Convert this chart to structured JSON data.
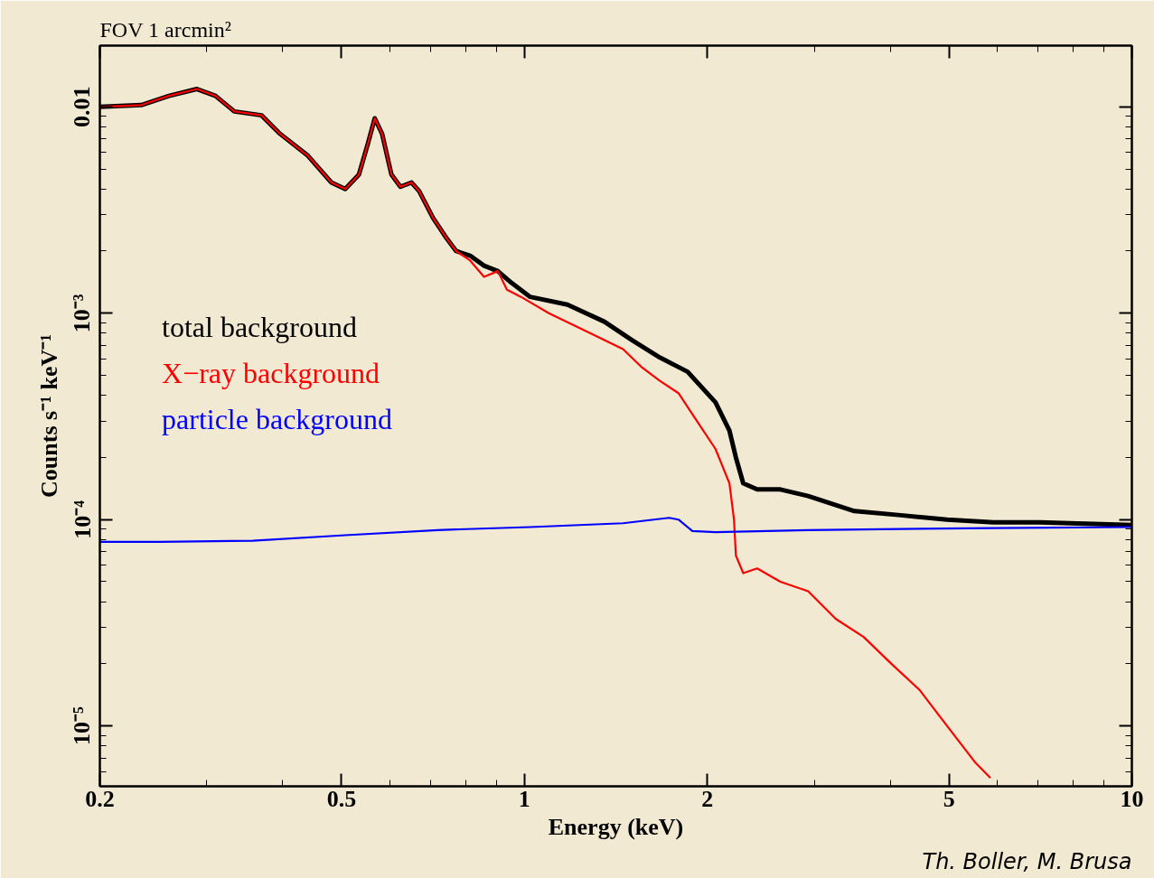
{
  "chart_data": {
    "type": "line",
    "title": "FOV 1 arcmin²",
    "xlabel": "Energy (keV)",
    "ylabel": "Counts s⁻¹ keV⁻¹",
    "annotations": [
      "Th. Boller, M. Brusa"
    ],
    "log": "xy",
    "grid": false,
    "legend": "left",
    "marker": "none",
    "line_style": "solid",
    "xlim": [
      0.2,
      10
    ],
    "xticks": [
      0.2,
      0.5,
      1,
      2,
      5,
      10
    ],
    "ylim": [
      5.1e-06,
      0.0198
    ],
    "yticks": [
      {
        "value": 0.01,
        "label": "0.01"
      },
      {
        "value": 0.001,
        "label": "10⁻³"
      },
      {
        "value": 0.0001,
        "label": "10⁻⁴"
      },
      {
        "value": 1e-05,
        "label": "10⁻⁵"
      }
    ],
    "series": [
      {
        "name": "total background",
        "color": "#000000",
        "x": [
          0.2,
          0.234,
          0.26,
          0.289,
          0.31,
          0.333,
          0.369,
          0.396,
          0.44,
          0.481,
          0.507,
          0.534,
          0.553,
          0.567,
          0.583,
          0.604,
          0.625,
          0.652,
          0.671,
          0.707,
          0.745,
          0.772,
          0.814,
          0.858,
          0.904,
          0.953,
          1.022,
          1.177,
          1.354,
          1.504,
          1.671,
          1.857,
          2.063,
          2.175,
          2.229,
          2.292,
          2.416,
          2.638,
          2.931,
          3.493,
          4.163,
          4.963,
          5.913,
          7.047,
          10
        ],
        "values": [
          0.01,
          0.0102,
          0.0113,
          0.0122,
          0.0113,
          0.0095,
          0.0091,
          0.0074,
          0.0058,
          0.0043,
          0.004,
          0.0047,
          0.0067,
          0.0088,
          0.0074,
          0.0047,
          0.0041,
          0.0043,
          0.0039,
          0.0029,
          0.0023,
          0.002,
          0.0019,
          0.0017,
          0.0016,
          0.0014,
          0.0012,
          0.0011,
          0.00091,
          0.00074,
          0.00061,
          0.00052,
          0.00037,
          0.00027,
          0.0002,
          0.00015,
          0.00014,
          0.00014,
          0.00013,
          0.00011,
          0.000105,
          0.0001,
          9.7e-05,
          9.7e-05,
          9.4e-05
        ]
      },
      {
        "name": "X−ray background",
        "color": "#ff0000",
        "x": [
          0.2,
          0.234,
          0.26,
          0.289,
          0.31,
          0.333,
          0.369,
          0.396,
          0.44,
          0.481,
          0.507,
          0.534,
          0.553,
          0.567,
          0.583,
          0.604,
          0.625,
          0.652,
          0.671,
          0.707,
          0.745,
          0.772,
          0.814,
          0.858,
          0.904,
          0.936,
          0.987,
          1.097,
          1.262,
          1.453,
          1.557,
          1.671,
          1.793,
          1.923,
          2.063,
          2.175,
          2.213,
          2.229,
          2.292,
          2.416,
          2.638,
          2.931,
          3.256,
          3.617,
          4.019,
          4.467,
          4.963,
          5.512,
          5.85
        ],
        "values": [
          0.01,
          0.0102,
          0.0113,
          0.0122,
          0.0113,
          0.0095,
          0.0091,
          0.0074,
          0.0058,
          0.0043,
          0.004,
          0.0047,
          0.0067,
          0.0088,
          0.0074,
          0.0047,
          0.0041,
          0.0043,
          0.0039,
          0.0029,
          0.0023,
          0.002,
          0.0018,
          0.0015,
          0.0016,
          0.0013,
          0.0012,
          0.001,
          0.00082,
          0.00067,
          0.00055,
          0.00047,
          0.00041,
          0.0003,
          0.00022,
          0.00015,
          0.0001,
          6.7e-05,
          5.5e-05,
          5.8e-05,
          5e-05,
          4.5e-05,
          3.3e-05,
          2.7e-05,
          2e-05,
          1.5e-05,
          1e-05,
          6.7e-06,
          5.6e-06
        ]
      },
      {
        "name": "particle background",
        "color": "#0000ff",
        "x": [
          0.2,
          0.251,
          0.357,
          0.507,
          0.72,
          1.022,
          1.453,
          1.731,
          1.793,
          1.89,
          2.063,
          2.931,
          4.163,
          5.913,
          10
        ],
        "values": [
          7.8e-05,
          7.8e-05,
          7.9e-05,
          8.4e-05,
          8.9e-05,
          9.2e-05,
          9.6e-05,
          0.000102,
          0.0001,
          8.8e-05,
          8.7e-05,
          8.9e-05,
          9e-05,
          9.1e-05,
          9.2e-05
        ]
      }
    ]
  }
}
